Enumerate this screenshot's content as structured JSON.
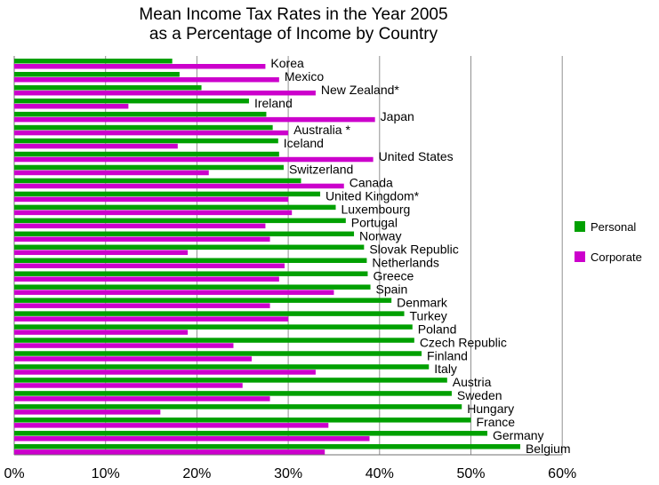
{
  "chart_data": {
    "type": "bar",
    "orientation": "horizontal",
    "title": "Mean Income Tax Rates in the Year 2005",
    "subtitle": "as a Percentage of Income by Country",
    "x_tick_labels": [
      "0%",
      "10%",
      "20%",
      "30%",
      "40%",
      "50%",
      "60%"
    ],
    "xlim": [
      0,
      60
    ],
    "grid": true,
    "legend_position": "right",
    "categories": [
      "Korea",
      "Mexico",
      "New Zealand*",
      "Ireland",
      "Japan",
      "Australia *",
      "Iceland",
      "United States",
      "Switzerland",
      "Canada",
      "United Kingdom*",
      "Luxembourg",
      "Portugal",
      "Norway",
      "Slovak Republic",
      "Netherlands",
      "Greece",
      "Spain",
      "Denmark",
      "Turkey",
      "Poland",
      "Czech Republic",
      "Finland",
      "Italy",
      "Austria",
      "Sweden",
      "Hungary",
      "France",
      "Germany",
      "Belgium"
    ],
    "series": [
      {
        "name": "Personal",
        "color": "#00a000",
        "values": [
          17.3,
          18.1,
          20.5,
          25.7,
          27.6,
          28.3,
          28.9,
          29.0,
          29.5,
          31.4,
          33.5,
          35.2,
          36.3,
          37.2,
          38.3,
          38.6,
          38.7,
          39.0,
          41.3,
          42.7,
          43.6,
          43.8,
          44.6,
          45.4,
          47.4,
          47.9,
          49.0,
          50.0,
          51.8,
          55.4
        ]
      },
      {
        "name": "Corporate",
        "color": "#cc00cc",
        "values": [
          27.5,
          29.0,
          33.0,
          12.5,
          39.5,
          30.0,
          17.9,
          39.3,
          21.3,
          36.1,
          30.0,
          30.4,
          27.5,
          28.0,
          19.0,
          29.6,
          29.0,
          35.0,
          28.0,
          30.0,
          19.0,
          24.0,
          26.0,
          33.0,
          25.0,
          28.0,
          16.0,
          34.4,
          38.9,
          34.0
        ]
      }
    ]
  }
}
